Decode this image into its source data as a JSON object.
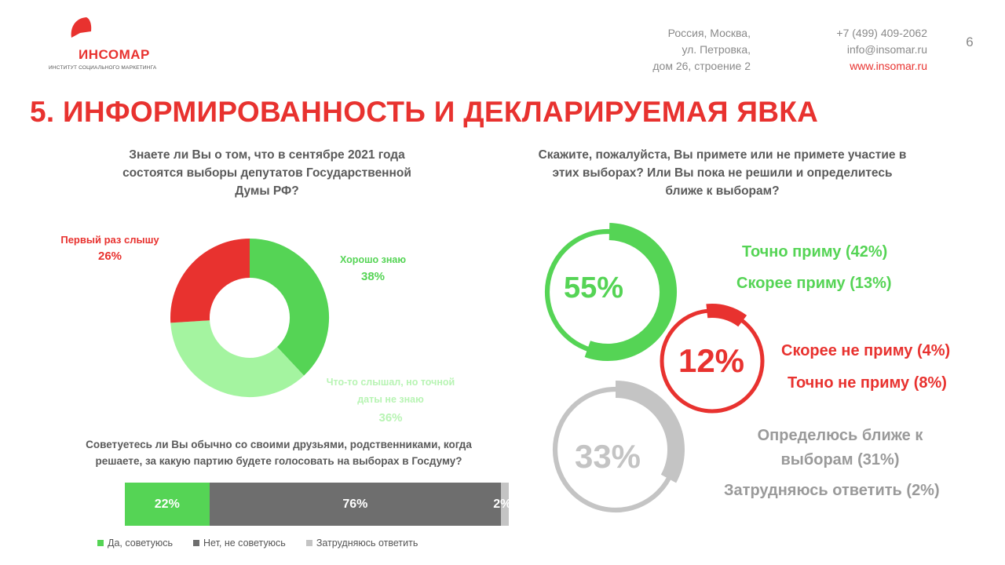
{
  "brand": {
    "name": "ИНСОМАР",
    "subtitle": "ИНСТИТУТ СОЦИАЛЬНОГО МАРКЕТИНГА",
    "color": "#e8322f"
  },
  "header": {
    "address_line1": "Россия, Москва,",
    "address_line2": "ул. Петровка,",
    "address_line3": "дом 26, строение 2",
    "phone": "+7 (499) 409-2062",
    "email": "info@insomar.ru",
    "website": "www.insomar.ru",
    "page_number": "6"
  },
  "slide_title": "5. ИНФОРМИРОВАННОСТЬ И ДЕКЛАРИРУЕМАЯ ЯВКА",
  "colors": {
    "red": "#e8322f",
    "green": "#55d455",
    "light_green": "#a4f4a0",
    "dark_gray": "#6e6e6e",
    "light_gray": "#c4c4c4",
    "text_gray": "#8c8c8c"
  },
  "chart_data": [
    {
      "type": "pie",
      "title": "Знаете ли Вы о том, что в сентябре 2021 года состоятся выборы депутатов Государственной Думы РФ?",
      "title_lines": [
        "Знаете ли Вы о том, что в сентябре 2021 года",
        "состоятся выборы депутатов Государственной",
        "Думы РФ?"
      ],
      "slices": [
        {
          "label": "Хорошо знаю",
          "value": 38,
          "value_label": "38%",
          "color": "#55d455"
        },
        {
          "label_lines": [
            "Что-то слышал, но точной",
            "даты не знаю"
          ],
          "label": "Что-то слышал, но точной даты не знаю",
          "value": 36,
          "value_label": "36%",
          "color": "#a4f4a0"
        },
        {
          "label": "Первый раз слышу",
          "value": 26,
          "value_label": "26%",
          "color": "#e8322f"
        }
      ]
    },
    {
      "type": "bar",
      "title": "Советуетесь ли Вы обычно со своими друзьями, родственниками, когда решаете, за какую партию будете голосовать на выборах в Госдуму?",
      "title_lines": [
        "Советуетесь ли Вы обычно со своими друзьями, родственниками, когда",
        "решаете, за какую партию будете голосовать на выборах в Госдуму?"
      ],
      "orientation": "horizontal-stacked",
      "series": [
        {
          "name": "Да, советуюсь",
          "value": 22,
          "value_label": "22%",
          "color": "#55d455"
        },
        {
          "name": "Нет, не советуюсь",
          "value": 76,
          "value_label": "76%",
          "color": "#6e6e6e"
        },
        {
          "name": "Затрудняюсь ответить",
          "value": 2,
          "value_label": "2%",
          "color": "#c4c4c4"
        }
      ],
      "legend_position": "bottom"
    },
    {
      "type": "pie",
      "title": "Скажите, пожалуйста, Вы примете или не примете участие в этих выборах? Или Вы пока не решили и определитесь ближе к выборам?",
      "title_lines": [
        "Скажите, пожалуйста, Вы примете или не примете участие в",
        "этих выборах? Или Вы пока не решили и определитесь",
        "ближе к выборам?"
      ],
      "groups": [
        {
          "total": 55,
          "total_label": "55%",
          "color": "#55d455",
          "items": [
            {
              "label": "Точно приму (42%)",
              "value": 42
            },
            {
              "label": "Скорее приму (13%)",
              "value": 13
            }
          ]
        },
        {
          "total": 12,
          "total_label": "12%",
          "color": "#e8322f",
          "items": [
            {
              "label": "Скорее не приму (4%)",
              "value": 4
            },
            {
              "label": "Точно не приму (8%)",
              "value": 8
            }
          ]
        },
        {
          "total": 33,
          "total_label": "33%",
          "color": "#c4c4c4",
          "items": [
            {
              "label_lines": [
                "Определюсь ближе к",
                "выборам (31%)"
              ],
              "label": "Определюсь ближе к выборам (31%)",
              "value": 31
            },
            {
              "label": "Затрудняюсь ответить (2%)",
              "value": 2
            }
          ]
        }
      ]
    }
  ]
}
